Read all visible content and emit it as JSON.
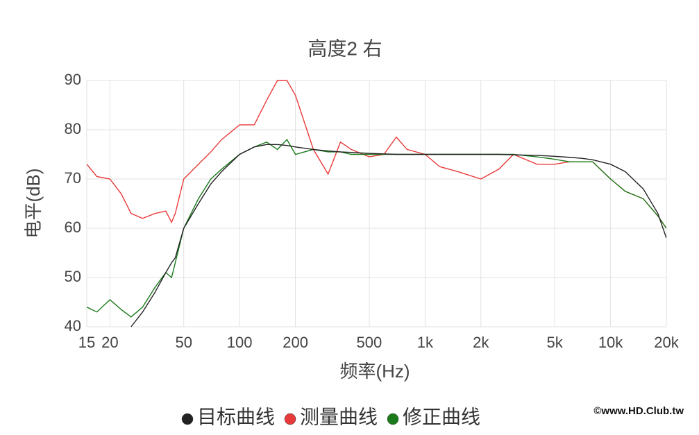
{
  "chart_data": {
    "type": "line",
    "title": "高度2 右",
    "x_label": "频率(Hz)",
    "y_label": "电平(dB)",
    "watermark": "©www.HD.Club.tw",
    "x_scale": "log",
    "grid": true,
    "legend_position": "bottom",
    "xlim": [
      15,
      20000
    ],
    "ylim": [
      40,
      90
    ],
    "xticks": [
      15,
      20,
      50,
      100,
      200,
      500,
      {
        "value": 1000,
        "label": "1k"
      },
      {
        "value": 2000,
        "label": "2k"
      },
      {
        "value": 5000,
        "label": "5k"
      },
      {
        "value": 10000,
        "label": "10k"
      },
      {
        "value": 20000,
        "label": "20k"
      }
    ],
    "yticks": [
      40,
      50,
      60,
      70,
      80,
      90
    ],
    "x": [
      15,
      17,
      20,
      23,
      26,
      30,
      35,
      40,
      43,
      45,
      50,
      60,
      70,
      80,
      100,
      120,
      140,
      160,
      180,
      200,
      250,
      300,
      350,
      400,
      500,
      600,
      700,
      800,
      1000,
      1200,
      1500,
      2000,
      2500,
      3000,
      4000,
      5000,
      6000,
      7000,
      8000,
      10000,
      12000,
      15000,
      18000,
      20000
    ],
    "series": [
      {
        "name": "目标曲线",
        "color": "#222222",
        "values": [
          null,
          null,
          null,
          null,
          40,
          43,
          47,
          51,
          53,
          54,
          60,
          65,
          69,
          71.5,
          75,
          76.5,
          77,
          77,
          76.8,
          76.5,
          76,
          75.7,
          75.5,
          75.4,
          75.2,
          75.1,
          75,
          75,
          75,
          75,
          75,
          75,
          75,
          74.9,
          74.8,
          74.6,
          74.4,
          74.2,
          73.9,
          73,
          71.5,
          68,
          63,
          58
        ]
      },
      {
        "name": "测量曲线",
        "color": "#e83a3a",
        "values": [
          73,
          70.5,
          70,
          67,
          63,
          62,
          63,
          63.5,
          61.2,
          63,
          70,
          73,
          75.5,
          78,
          81,
          81,
          86,
          90,
          90,
          87,
          76,
          71,
          77.5,
          76,
          74.5,
          75,
          78.5,
          76,
          75,
          72.5,
          71.5,
          70,
          72,
          75,
          73,
          73,
          73.5,
          73.5,
          73.5,
          70,
          67.5,
          66,
          62.5,
          60
        ]
      },
      {
        "name": "修正曲线",
        "color": "#1a7a1a",
        "values": [
          44,
          43,
          45.5,
          43.5,
          42,
          44,
          48,
          51,
          50,
          53,
          60,
          66,
          70,
          72,
          75,
          76.5,
          77.5,
          76,
          78,
          75,
          76,
          75.5,
          75.5,
          75,
          75,
          75,
          75,
          75,
          75,
          75,
          75,
          75,
          75,
          75,
          74.5,
          74,
          73.5,
          73.5,
          73.5,
          70,
          67.5,
          66,
          62.5,
          60
        ]
      }
    ]
  }
}
